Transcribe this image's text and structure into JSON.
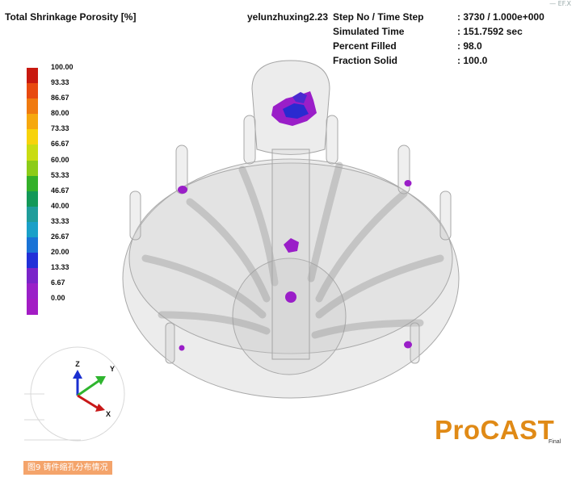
{
  "plot_title": "Total Shrinkage Porosity [%]",
  "project": "yelunzhuxing2.23",
  "info": [
    {
      "label": "Step No / Time Step",
      "value": ": 3730 / 1.000e+000"
    },
    {
      "label": "Simulated Time",
      "value": ": 151.7592 sec"
    },
    {
      "label": "Percent Filled",
      "value": ": 98.0"
    },
    {
      "label": "Fraction Solid",
      "value": ": 100.0"
    }
  ],
  "legend": {
    "labels": [
      "100.00",
      "93.33",
      "86.67",
      "80.00",
      "73.33",
      "66.67",
      "60.00",
      "53.33",
      "46.67",
      "40.00",
      "33.33",
      "26.67",
      "20.00",
      "13.33",
      "6.67",
      "0.00"
    ],
    "colors": [
      "#c8190f",
      "#e84a10",
      "#f07a10",
      "#f6a80e",
      "#f7d30b",
      "#c9dc12",
      "#8ccc18",
      "#33b02a",
      "#139958",
      "#1f9d9b",
      "#1aa0c8",
      "#1a73d6",
      "#2130d8",
      "#7a24c9",
      "#9a20c8",
      "#a31cc4"
    ]
  },
  "axes": {
    "z": "Z",
    "y": "Y",
    "x": "X"
  },
  "logo": {
    "text": "ProCAST",
    "sub": "Final"
  },
  "caption": "图9 铸件缩孔分布情况",
  "corner_mark": "— EF.X",
  "colors": {
    "porosity_defect": "#9a1ec8",
    "porosity_core": "#2a2ad0",
    "casting": "#bdbdbd",
    "logo": "#e08a16"
  }
}
